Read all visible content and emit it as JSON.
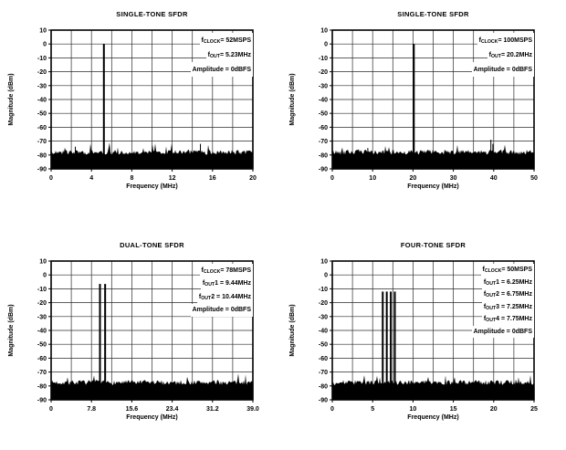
{
  "page": {
    "background": "#ffffff",
    "text_color": "#000000",
    "grid_color": "#2b2b2b",
    "trace_color": "#000000"
  },
  "chart_data": [
    {
      "type": "line",
      "subtype": "fft-spectrum",
      "title": "SINGLE-TONE SFDR",
      "xlabel": "Frequency (MHz)",
      "ylabel": "Magnitude (dBm)",
      "xlim": [
        0,
        20
      ],
      "ylim": [
        -90,
        10
      ],
      "xtick_values": [
        0,
        4,
        8,
        12,
        16,
        20
      ],
      "xtick_labels": [
        "0",
        "4",
        "8",
        "12",
        "16",
        "20"
      ],
      "ytick_values": [
        10,
        0,
        -10,
        -20,
        -30,
        -40,
        -50,
        -60,
        -70,
        -80,
        -90
      ],
      "ytick_labels": [
        "10",
        "0",
        "-10",
        "-20",
        "-30",
        "-40",
        "-50",
        "-60",
        "-70",
        "-80",
        "-90"
      ],
      "x_grid_divisions": 10,
      "y_grid_divisions": 10,
      "grid": true,
      "legend": "none",
      "noise_floor_dbm": -78,
      "seed": 17,
      "tones": [
        {
          "freq_mhz": 5.23,
          "level_dbm": 0
        }
      ],
      "spurs": [
        {
          "freq_mhz": 2.4,
          "level_dbm": -74
        },
        {
          "freq_mhz": 14.8,
          "level_dbm": -72
        }
      ],
      "annotations": [
        {
          "pre": "f",
          "sub": "CLOCK",
          "post": " = 52MSPS"
        },
        {
          "pre": "f",
          "sub": "OUT",
          "post": " = 5.23MHz"
        },
        {
          "pre": "Amplitude = 0dBFS",
          "sub": "",
          "post": ""
        }
      ]
    },
    {
      "type": "line",
      "subtype": "fft-spectrum",
      "title": "SINGLE-TONE SFDR",
      "xlabel": "Frequency (MHz)",
      "ylabel": "Magnitude (dBm)",
      "xlim": [
        0,
        50
      ],
      "ylim": [
        -90,
        10
      ],
      "xtick_values": [
        0,
        10,
        20,
        30,
        40,
        50
      ],
      "xtick_labels": [
        "0",
        "10",
        "20",
        "30",
        "40",
        "50"
      ],
      "ytick_values": [
        10,
        0,
        -10,
        -20,
        -30,
        -40,
        -50,
        -60,
        -70,
        -80,
        -90
      ],
      "ytick_labels": [
        "10",
        "0",
        "-10",
        "-20",
        "-30",
        "-40",
        "-50",
        "-60",
        "-70",
        "-80",
        "-90"
      ],
      "x_grid_divisions": 10,
      "y_grid_divisions": 10,
      "grid": true,
      "legend": "none",
      "noise_floor_dbm": -78,
      "seed": 42,
      "tones": [
        {
          "freq_mhz": 20.2,
          "level_dbm": 0
        }
      ],
      "spurs": [
        {
          "freq_mhz": 8.8,
          "level_dbm": -75
        },
        {
          "freq_mhz": 39.3,
          "level_dbm": -69
        },
        {
          "freq_mhz": 39.8,
          "level_dbm": -72
        }
      ],
      "annotations": [
        {
          "pre": "f",
          "sub": "CLOCK",
          "post": " = 100MSPS"
        },
        {
          "pre": "f",
          "sub": "OUT",
          "post": " = 20.2MHz"
        },
        {
          "pre": "Amplitude = 0dBFS",
          "sub": "",
          "post": ""
        }
      ]
    },
    {
      "type": "line",
      "subtype": "fft-spectrum",
      "title": "DUAL-TONE SFDR",
      "xlabel": "Frequency (MHz)",
      "ylabel": "Magnitude (dBm)",
      "xlim": [
        0,
        39
      ],
      "ylim": [
        -90,
        10
      ],
      "xtick_values": [
        0,
        7.8,
        15.6,
        23.4,
        31.2,
        39.0
      ],
      "xtick_labels": [
        "0",
        "7.8",
        "15.6",
        "23.4",
        "31.2",
        "39.0"
      ],
      "ytick_values": [
        10,
        0,
        -10,
        -20,
        -30,
        -40,
        -50,
        -60,
        -70,
        -80,
        -90
      ],
      "ytick_labels": [
        "10",
        "0",
        "-10",
        "-20",
        "-30",
        "-40",
        "-50",
        "-60",
        "-70",
        "-80",
        "-90"
      ],
      "x_grid_divisions": 10,
      "y_grid_divisions": 10,
      "grid": true,
      "legend": "none",
      "noise_floor_dbm": -77.5,
      "seed": 7,
      "tones": [
        {
          "freq_mhz": 9.44,
          "level_dbm": -6.5
        },
        {
          "freq_mhz": 10.44,
          "level_dbm": -6.5
        }
      ],
      "spurs": [],
      "annotations": [
        {
          "pre": "f",
          "sub": "CLOCK",
          "post": " = 78MSPS"
        },
        {
          "pre": "f",
          "sub": "OUT",
          "post": "1 = 9.44MHz"
        },
        {
          "pre": "f",
          "sub": "OUT",
          "post": "2 = 10.44MHz"
        },
        {
          "pre": "Amplitude = 0dBFS",
          "sub": "",
          "post": ""
        }
      ]
    },
    {
      "type": "line",
      "subtype": "fft-spectrum",
      "title": "FOUR-TONE SFDR",
      "xlabel": "Frequency (MHz)",
      "ylabel": "Magnitude (dBm)",
      "xlim": [
        0,
        25
      ],
      "ylim": [
        -90,
        10
      ],
      "xtick_values": [
        0,
        5,
        10,
        15,
        20,
        25
      ],
      "xtick_labels": [
        "0",
        "5",
        "10",
        "15",
        "20",
        "25"
      ],
      "ytick_values": [
        10,
        0,
        -10,
        -20,
        -30,
        -40,
        -50,
        -60,
        -70,
        -80,
        -90
      ],
      "ytick_labels": [
        "10",
        "0",
        "-10",
        "-20",
        "-30",
        "-40",
        "-50",
        "-60",
        "-70",
        "-80",
        "-90"
      ],
      "x_grid_divisions": 10,
      "y_grid_divisions": 10,
      "grid": true,
      "legend": "none",
      "noise_floor_dbm": -77.5,
      "seed": 99,
      "tones": [
        {
          "freq_mhz": 6.25,
          "level_dbm": -12
        },
        {
          "freq_mhz": 6.75,
          "level_dbm": -12
        },
        {
          "freq_mhz": 7.25,
          "level_dbm": -12
        },
        {
          "freq_mhz": 7.75,
          "level_dbm": -12
        }
      ],
      "spurs": [],
      "annotations": [
        {
          "pre": "f",
          "sub": "CLOCK",
          "post": " = 50MSPS"
        },
        {
          "pre": "f",
          "sub": "OUT",
          "post": "1 = 6.25MHz"
        },
        {
          "pre": "f",
          "sub": "OUT",
          "post": "2 = 6.75MHz"
        },
        {
          "pre": "f",
          "sub": "OUT",
          "post": "3 = 7.25MHz"
        },
        {
          "pre": "f",
          "sub": "OUT",
          "post": "4 = 7.75MHz"
        },
        {
          "pre": "Amplitude = 0dBFS",
          "sub": "",
          "post": ""
        }
      ]
    }
  ]
}
